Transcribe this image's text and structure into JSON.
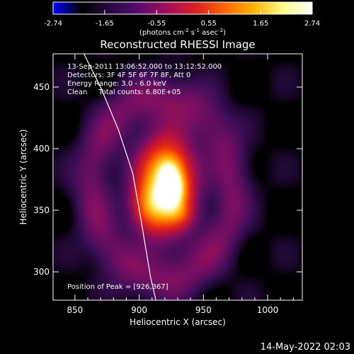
{
  "chart_data": {
    "type": "heatmap",
    "title": "Reconstructed RHESSI Image",
    "xlabel": "Heliocentric X (arcsec)",
    "ylabel": "Heliocentric Y (arcsec)",
    "xlim": [
      833,
      1027
    ],
    "ylim": [
      277,
      477
    ],
    "xticks": [
      850,
      900,
      950,
      1000
    ],
    "yticks": [
      300,
      350,
      400,
      450
    ],
    "colorbar": {
      "min": -2.74,
      "max": 2.74,
      "ticks": [
        "-2.74",
        "-1.65",
        "-0.55",
        "0.55",
        "1.65",
        "2.74"
      ],
      "tick_values": [
        -2.74,
        -1.65,
        -0.55,
        0.55,
        1.65,
        2.74
      ],
      "unit_prefix": "(photons cm",
      "unit_sup1": "-2",
      "unit_mid": " s",
      "unit_sup2": "-1",
      "unit_mid2": " asec",
      "unit_sup3": "-2",
      "unit_suffix": ")",
      "colors": [
        "#0000ff",
        "#000000",
        "#2a0a45",
        "#5a0c6e",
        "#a3105a",
        "#e02020",
        "#ff6a00",
        "#ffb400",
        "#ffff90",
        "#ffffff"
      ]
    },
    "info_lines": [
      "13-Sep-2011 13:06:52.000 to 13:12:52.000",
      "Detectors: 3F 4F 5F 6F 7F 8F, Att 0",
      "Energy Range: 3.0 - 6.0 keV",
      "Clean     Total counts: 6.80E+05"
    ],
    "peak_label": "Position of Peak = [926,367]",
    "peak": [
      926,
      367
    ],
    "sources": [
      {
        "x": 921,
        "y": 371,
        "sx": 15,
        "sy": 26,
        "amp": 1.0
      },
      {
        "x": 927,
        "y": 367,
        "sx": 6,
        "sy": 9,
        "amp": 0.42
      },
      {
        "x": 924,
        "y": 384,
        "sx": 7,
        "sy": 8,
        "amp": 0.22
      },
      {
        "x": 907,
        "y": 352,
        "sx": 10,
        "sy": 13,
        "amp": 0.35
      },
      {
        "x": 932,
        "y": 347,
        "sx": 8,
        "sy": 7,
        "amp": 0.18
      }
    ],
    "halo": {
      "x": 918,
      "y": 368,
      "sx": 52,
      "sy": 70,
      "amp": 0.22
    },
    "limb": [
      [
        857,
        477
      ],
      [
        870,
        450
      ],
      [
        884,
        415
      ],
      [
        895,
        380
      ],
      [
        901,
        345
      ],
      [
        905,
        320
      ],
      [
        909,
        295
      ],
      [
        913,
        277
      ]
    ]
  },
  "footer": {
    "timestamp": "14-May-2022 02:03"
  }
}
